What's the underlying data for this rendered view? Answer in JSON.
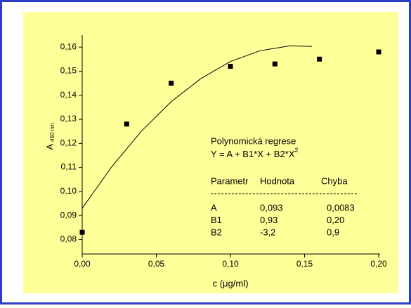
{
  "chart_data": {
    "type": "scatter",
    "xlabel": "c (μg/ml)",
    "ylabel": "A",
    "ylabel_sub": "450 nm",
    "series": [
      {
        "name": null,
        "kind": "points",
        "color": "#000000",
        "x": [
          0,
          0.03,
          0.06,
          0.1,
          0.13,
          0.16,
          0.2
        ],
        "values": [
          0.083,
          0.128,
          0.145,
          0.152,
          0.153,
          0.155,
          0.158
        ]
      },
      {
        "name": null,
        "kind": "fit",
        "color": "#000000",
        "x": [
          0,
          0.02,
          0.04,
          0.06,
          0.08,
          0.1,
          0.12,
          0.14,
          0.155
        ],
        "values": [
          0.093,
          0.1103,
          0.1251,
          0.1373,
          0.1469,
          0.154,
          0.1585,
          0.1605,
          0.1603
        ]
      }
    ],
    "xlim": [
      0,
      0.2
    ],
    "ylim": [
      0.074,
      0.165
    ],
    "xticks": [
      {
        "value": 0,
        "label": "0,00"
      },
      {
        "value": 0.05,
        "label": "0,05"
      },
      {
        "value": 0.1,
        "label": "0,10"
      },
      {
        "value": 0.15,
        "label": "0,15"
      },
      {
        "value": 0.2,
        "label": "0,20"
      }
    ],
    "yticks": [
      {
        "value": 0.08,
        "label": "0,08"
      },
      {
        "value": 0.09,
        "label": "0,09"
      },
      {
        "value": 0.1,
        "label": "0,10"
      },
      {
        "value": 0.11,
        "label": "0,11"
      },
      {
        "value": 0.12,
        "label": "0,12"
      },
      {
        "value": 0.13,
        "label": "0,13"
      },
      {
        "value": 0.14,
        "label": "0,14"
      },
      {
        "value": 0.15,
        "label": "0,15"
      },
      {
        "value": 0.16,
        "label": "0,16"
      }
    ],
    "annotation": {
      "title": "Polynomická regrese",
      "equation": "Y = A + B1*X + B2*X",
      "equation_sup": "2",
      "header": [
        "Parametr",
        "Hodnota",
        "Chyba"
      ],
      "rows": [
        [
          "A",
          "0,093",
          "0,0083"
        ],
        [
          "B1",
          "0,93",
          "0,20"
        ],
        [
          "B2",
          "-3,2",
          "0,9"
        ]
      ]
    }
  }
}
